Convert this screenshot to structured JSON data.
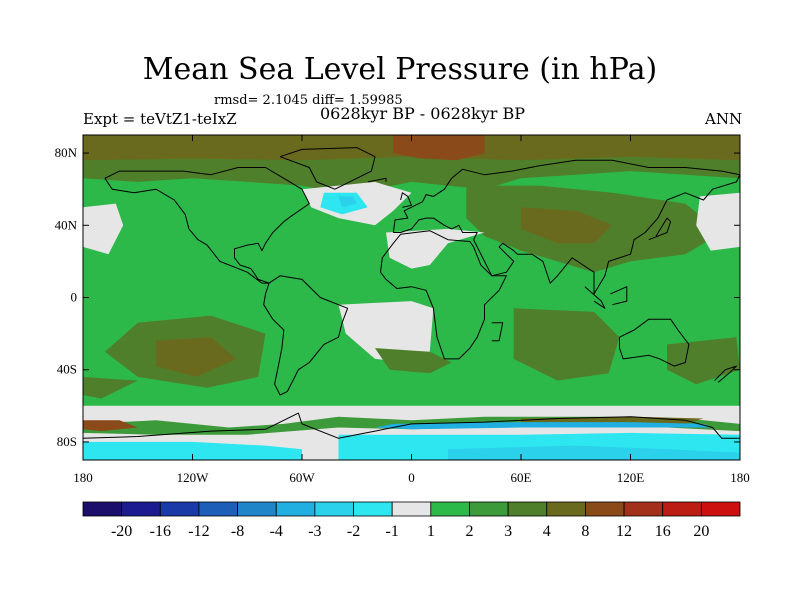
{
  "figure": {
    "title": "Mean Sea Level Pressure (in hPa)",
    "stats_label": "rmsd= 2.1045 diff= 1.59985",
    "left_subtitle": "Expt = teVtZ1-teIxZ",
    "center_subtitle": "0628kyr BP - 0628kyr BP",
    "right_subtitle": "ANN"
  },
  "chart_data": {
    "type": "heatmap",
    "title": "Mean Sea Level Pressure (in hPa)",
    "projection": "cylindrical equidistant",
    "xlim": [
      -180,
      180
    ],
    "ylim": [
      -90,
      90
    ],
    "x_ticks": [
      {
        "value": -180,
        "label": "180"
      },
      {
        "value": -120,
        "label": "120W"
      },
      {
        "value": -60,
        "label": "60W"
      },
      {
        "value": 0,
        "label": "0"
      },
      {
        "value": 60,
        "label": "60E"
      },
      {
        "value": 120,
        "label": "120E"
      },
      {
        "value": 180,
        "label": "180"
      }
    ],
    "y_ticks": [
      {
        "value": 80,
        "label": "80N"
      },
      {
        "value": 40,
        "label": "40N"
      },
      {
        "value": 0,
        "label": "0"
      },
      {
        "value": -40,
        "label": "40S"
      },
      {
        "value": -80,
        "label": "80S"
      }
    ],
    "colorbar": {
      "levels": [
        "-20",
        "-16",
        "-12",
        "-8",
        "-4",
        "-3",
        "-2",
        "-1",
        "1",
        "2",
        "3",
        "4",
        "8",
        "12",
        "16",
        "20"
      ],
      "colors": [
        "#1b0f6b",
        "#1c1c90",
        "#1a3aa8",
        "#1d5fb8",
        "#1e86c8",
        "#21aee0",
        "#2bd0ea",
        "#2ee6f0",
        "#e6e6e6",
        "#2db84a",
        "#3d9a3a",
        "#4f7f2a",
        "#6a6a1e",
        "#8a4a1a",
        "#a3301a",
        "#bb1c14",
        "#cc0f0f"
      ]
    },
    "colors": {
      "neutral": "#e6e6e6",
      "pos1": "#2db84a",
      "pos2": "#3d9a3a",
      "pos3": "#4f7f2a",
      "pos4": "#6a6a1e",
      "pos5": "#8a4a1a",
      "neg1": "#2ee6f0",
      "neg2": "#2bd0ea",
      "neg3": "#21aee0"
    }
  }
}
